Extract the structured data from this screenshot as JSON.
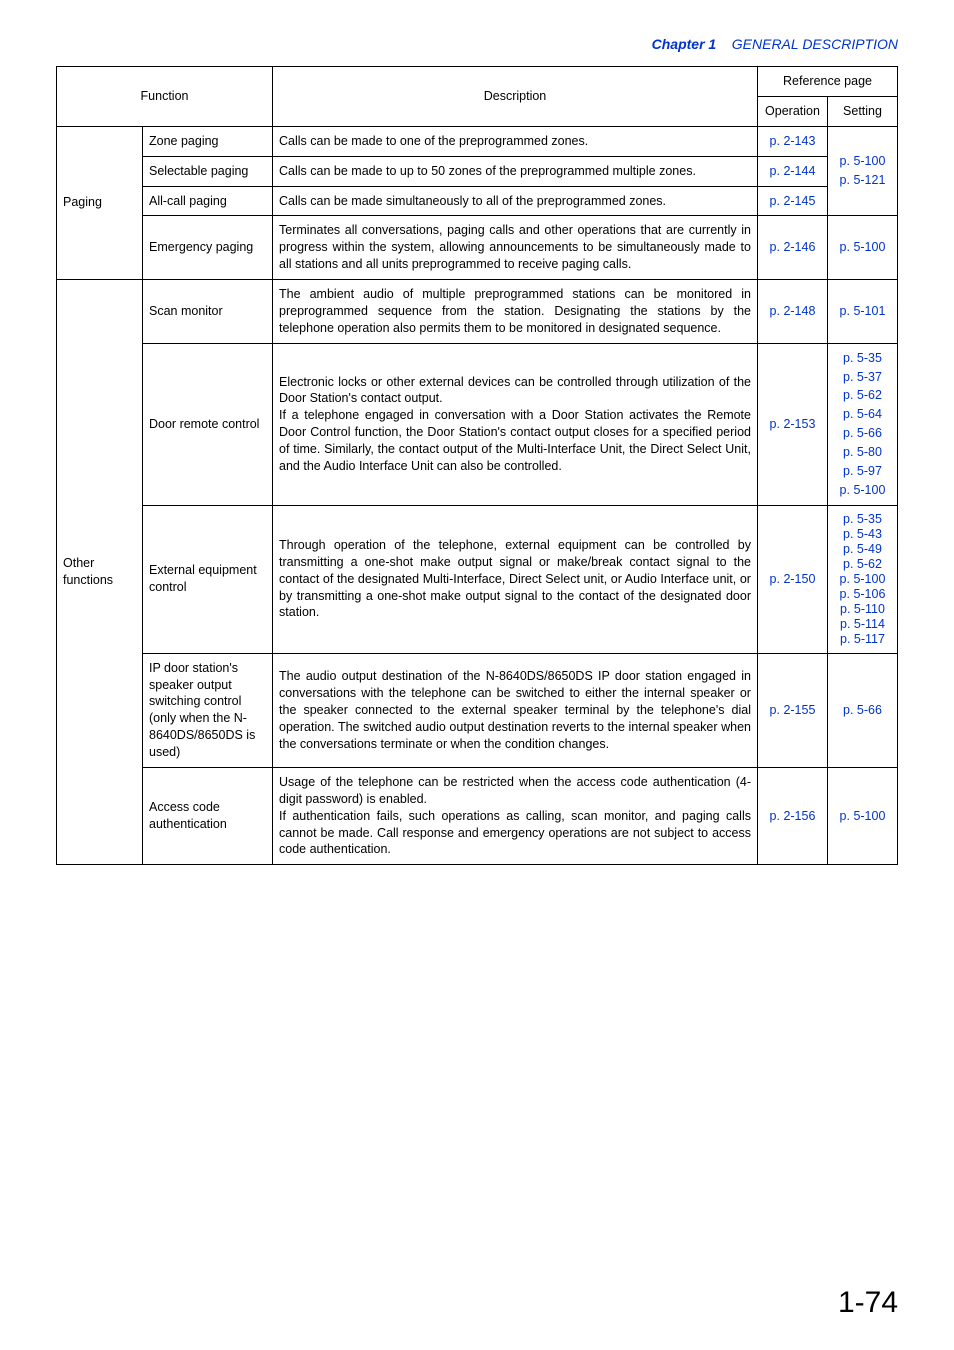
{
  "colors": {
    "link": "#0033cc",
    "border": "#000000",
    "text": "#000000",
    "background": "#ffffff"
  },
  "header": {
    "chapter_label": "Chapter 1",
    "chapter_title": "GENERAL DESCRIPTION"
  },
  "page_number": "1-74",
  "table": {
    "head": {
      "function": "Function",
      "description": "Description",
      "reference_page": "Reference page",
      "operation": "Operation",
      "setting": "Setting"
    },
    "groups": [
      {
        "group": "Paging",
        "rows": [
          {
            "function": "Zone paging",
            "description": "Calls can be made to one of the preprogrammed zones.",
            "operation": [
              "p. 2-143"
            ],
            "setting_span": 3,
            "setting": [
              "p. 5-100",
              "p. 5-121"
            ]
          },
          {
            "function": "Selectable paging",
            "description": "Calls can be made to up to 50 zones of the preprogrammed multiple zones.",
            "operation": [
              "p. 2-144"
            ]
          },
          {
            "function": "All-call paging",
            "description": "Calls can be made simultaneously to all of the preprogrammed zones.",
            "operation": [
              "p. 2-145"
            ]
          },
          {
            "function": "Emergency paging",
            "description": "Terminates all conversations, paging calls and other operations that are currently in progress within the system, allowing announcements to be simultaneously made to all stations and all units preprogrammed to receive paging calls.",
            "operation": [
              "p. 2-146"
            ],
            "setting": [
              "p. 5-100"
            ]
          }
        ]
      },
      {
        "group": "Other functions",
        "rows": [
          {
            "function": "Scan monitor",
            "description": "The ambient audio of multiple preprogrammed stations can be monitored in preprogrammed sequence from the station. Designating the stations by the telephone operation also permits them to be monitored in designated sequence.",
            "operation": [
              "p. 2-148"
            ],
            "setting": [
              "p. 5-101"
            ]
          },
          {
            "function": "Door remote control",
            "description": "Electronic locks or other external devices can be controlled through utilization of the Door Station's contact output.\nIf a telephone engaged in conversation with a Door Station activates the Remote Door Control function, the Door Station's contact output closes for a specified period of time. Similarly, the contact output of the Multi-Interface Unit, the Direct Select Unit, and the Audio Interface Unit can also be controlled.",
            "operation": [
              "p. 2-153"
            ],
            "setting": [
              "p. 5-35",
              "p. 5-37",
              "p. 5-62",
              "p. 5-64",
              "p. 5-66",
              "p. 5-80",
              "p. 5-97",
              "p. 5-100"
            ]
          },
          {
            "function": "External equipment control",
            "description": "Through operation of the telephone, external equipment can be controlled by transmitting a one-shot make output signal or make/break contact signal to the contact of the designated Multi-Interface, Direct Select unit, or Audio Interface unit, or by transmitting a one-shot make output signal to the contact of the designated door station.",
            "operation": [
              "p. 2-150"
            ],
            "setting": [
              "p. 5-35",
              "p. 5-43",
              "p. 5-49",
              "p. 5-62",
              "p. 5-100",
              "p. 5-106",
              "p. 5-110",
              "p. 5-114",
              "p. 5-117"
            ],
            "setting_tight": true
          },
          {
            "function": "IP door station's speaker output switching control (only when the N-8640DS/8650DS is used)",
            "description": "The audio output destination of the N-8640DS/8650DS IP door station engaged in conversations with the telephone can be switched to either the internal speaker or the speaker connected to the external speaker terminal by the telephone's dial operation. The switched audio output destination reverts to the internal speaker when the conversations terminate or when the condition changes.",
            "operation": [
              "p. 2-155"
            ],
            "setting": [
              "p. 5-66"
            ]
          },
          {
            "function": "Access code authentication",
            "description": "Usage of the telephone can be restricted when the access code authentication (4-digit password) is enabled.\nIf authentication fails, such operations as calling, scan monitor, and paging calls cannot be made. Call response and emergency operations are not subject to access code authentication.",
            "operation": [
              "p. 2-156"
            ],
            "setting": [
              "p. 5-100"
            ]
          }
        ]
      }
    ]
  }
}
